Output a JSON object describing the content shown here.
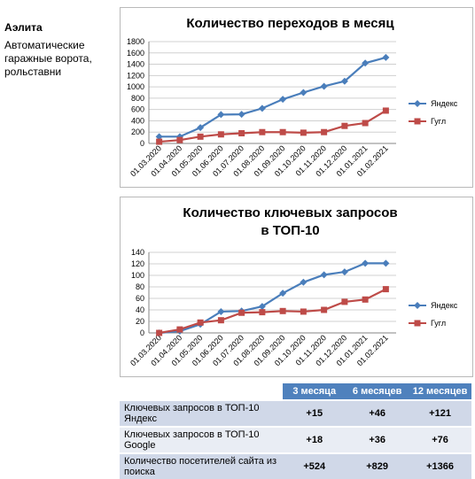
{
  "company": {
    "name": "Аэлита",
    "description": "Автоматические гаражные ворота, рольставни"
  },
  "chart_data": [
    {
      "type": "line",
      "title": "Количество переходов в месяц",
      "categories": [
        "01.03.2020",
        "01.04.2020",
        "01.05.2020",
        "01.06.2020",
        "01.07.2020",
        "01.08.2020",
        "01.09.2020",
        "01.10.2020",
        "01.11.2020",
        "01.12.2020",
        "01.01.2021",
        "01.02.2021"
      ],
      "ylim": [
        0,
        1800
      ],
      "yticks": [
        "0",
        "200",
        "400",
        "600",
        "800",
        "1000",
        "1200",
        "1400",
        "1600",
        "1800"
      ],
      "series": [
        {
          "name": "Яндекс",
          "color": "#4a7ebb",
          "marker": "diamond",
          "values": [
            120,
            120,
            280,
            510,
            515,
            620,
            780,
            900,
            1010,
            1100,
            1420,
            1520
          ]
        },
        {
          "name": "Гугл",
          "color": "#be4b48",
          "marker": "square",
          "values": [
            30,
            60,
            120,
            160,
            180,
            200,
            200,
            190,
            200,
            310,
            360,
            580
          ]
        }
      ],
      "legend": "right",
      "grid": true
    },
    {
      "type": "line",
      "title": "Количество ключевых запросов в ТОП-10",
      "title_lines": [
        "Количество ключевых запросов",
        "в ТОП-10"
      ],
      "categories": [
        "01.03.2020",
        "01.04.2020",
        "01.05.2020",
        "01.06.2020",
        "01.07.2020",
        "01.08.2020",
        "01.09.2020",
        "01.10.2020",
        "01.11.2020",
        "01.12.2020",
        "01.01.2021",
        "01.02.2021"
      ],
      "ylim": [
        0,
        140
      ],
      "yticks": [
        "0",
        "20",
        "40",
        "60",
        "80",
        "100",
        "120",
        "140"
      ],
      "series": [
        {
          "name": "Яндекс",
          "color": "#4a7ebb",
          "marker": "diamond",
          "values": [
            0,
            3,
            15,
            37,
            38,
            46,
            69,
            88,
            101,
            106,
            121,
            121
          ]
        },
        {
          "name": "Гугл",
          "color": "#be4b48",
          "marker": "square",
          "values": [
            0,
            6,
            18,
            22,
            35,
            36,
            38,
            37,
            40,
            54,
            58,
            76
          ]
        }
      ],
      "legend": "right",
      "grid": true
    }
  ],
  "summary_table": {
    "headers": [
      "",
      "3 месяца",
      "6 месяцев",
      "12 месяцев"
    ],
    "rows": [
      {
        "metric": "Ключевых запросов в ТОП-10 Яндекс",
        "values": [
          "+15",
          "+46",
          "+121"
        ]
      },
      {
        "metric": "Ключевых запросов в ТОП-10 Google",
        "values": [
          "+18",
          "+36",
          "+76"
        ]
      },
      {
        "metric": "Количество посетителей сайта из поиска",
        "values": [
          "+524",
          "+829",
          "+1366"
        ]
      }
    ]
  }
}
